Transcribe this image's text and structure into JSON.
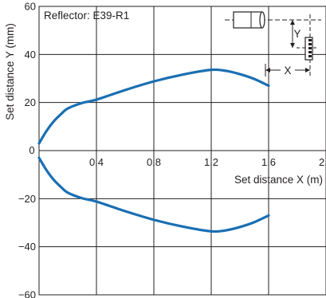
{
  "chart_data": {
    "type": "line",
    "annotation": "Reflector: E39-R1",
    "xlabel": "Set distance X (m)",
    "ylabel": "Set distance Y (mm)",
    "xlim": [
      0,
      2.0
    ],
    "ylim": [
      -60,
      60
    ],
    "x_ticks": [
      "0.4",
      "0.8",
      "1.2",
      "1.6",
      "2.0"
    ],
    "y_ticks": [
      "60",
      "40",
      "20",
      "0",
      "−20",
      "−40",
      "−60"
    ],
    "x_origin_label": "0",
    "grid": true,
    "series_color": "#1a6fb3",
    "series": [
      {
        "x": [
          0.0,
          0.05,
          0.1,
          0.15,
          0.2,
          0.3,
          0.4,
          0.6,
          0.8,
          1.0,
          1.2,
          1.3,
          1.4,
          1.5,
          1.6
        ],
        "y": [
          3,
          8,
          12,
          15,
          17.5,
          19.8,
          21.2,
          25.2,
          28.8,
          31.6,
          33.6,
          33.2,
          31.8,
          29.8,
          27
        ]
      },
      {
        "x": [
          0.0,
          0.05,
          0.1,
          0.15,
          0.2,
          0.3,
          0.4,
          0.6,
          0.8,
          1.0,
          1.2,
          1.3,
          1.4,
          1.5,
          1.6
        ],
        "y": [
          -3,
          -8,
          -12,
          -15,
          -17.5,
          -19.8,
          -21.2,
          -25.2,
          -28.8,
          -31.6,
          -33.6,
          -33.2,
          -31.8,
          -29.8,
          -27
        ]
      }
    ],
    "inset": {
      "y_label": "Y",
      "x_label": "X"
    }
  }
}
